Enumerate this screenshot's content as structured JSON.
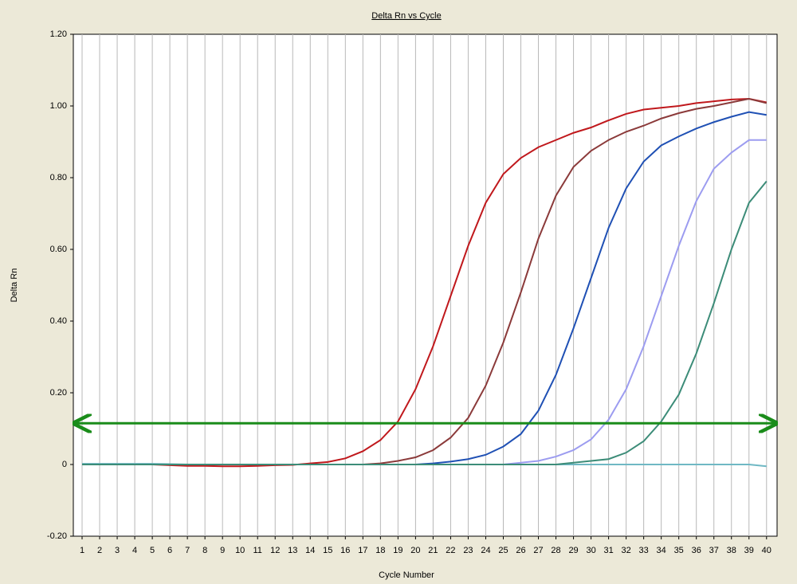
{
  "chart_data": {
    "type": "line",
    "title": "Delta Rn vs Cycle",
    "x_label": "Cycle Number",
    "y_label": "Delta Rn",
    "x": [
      1,
      2,
      3,
      4,
      5,
      6,
      7,
      8,
      9,
      10,
      11,
      12,
      13,
      14,
      15,
      16,
      17,
      18,
      19,
      20,
      21,
      22,
      23,
      24,
      25,
      26,
      27,
      28,
      29,
      30,
      31,
      32,
      33,
      34,
      35,
      36,
      37,
      38,
      39,
      40
    ],
    "xlim": [
      0.5,
      40.6
    ],
    "xticks": [
      1,
      2,
      3,
      4,
      5,
      6,
      7,
      8,
      9,
      10,
      11,
      12,
      13,
      14,
      15,
      16,
      17,
      18,
      19,
      20,
      21,
      22,
      23,
      24,
      25,
      26,
      27,
      28,
      29,
      30,
      31,
      32,
      33,
      34,
      35,
      36,
      37,
      38,
      39,
      40
    ],
    "ylim": [
      -0.2,
      1.2
    ],
    "yticks": [
      {
        "value": -0.2,
        "label": "-0.20"
      },
      0,
      {
        "value": 0.2,
        "label": "0.20"
      },
      {
        "value": 0.4,
        "label": "0.40"
      },
      {
        "value": 0.6,
        "label": "0.60"
      },
      {
        "value": 0.8,
        "label": "0.80"
      },
      {
        "value": 1.0,
        "label": "1.00"
      },
      {
        "value": 1.2,
        "label": "1.20"
      }
    ],
    "grid": true,
    "threshold": 0.115,
    "threshold_color": "#1a8c1a",
    "series": [
      {
        "color": "#6fb8c4",
        "values": [
          0.002,
          0.002,
          0.002,
          0.002,
          0.002,
          0.001,
          0,
          0,
          0,
          0,
          0,
          0,
          0,
          0,
          0,
          0,
          0,
          0,
          0,
          0,
          0,
          0,
          0,
          0,
          0,
          0,
          0,
          0,
          0,
          0,
          0,
          0,
          0,
          0,
          0,
          0,
          0,
          0,
          0,
          -0.005
        ]
      },
      {
        "color": "#c0181c",
        "values": [
          0,
          0,
          0,
          0,
          0,
          -0.002,
          -0.004,
          -0.004,
          -0.005,
          -0.005,
          -0.004,
          -0.002,
          -0.001,
          0.003,
          0.007,
          0.017,
          0.037,
          0.068,
          0.12,
          0.21,
          0.33,
          0.47,
          0.61,
          0.73,
          0.81,
          0.855,
          0.885,
          0.905,
          0.925,
          0.94,
          0.96,
          0.978,
          0.99,
          0.995,
          1.0,
          1.008,
          1.013,
          1.018,
          1.02,
          1.01
        ]
      },
      {
        "color": "#8b3a3a",
        "values": [
          0,
          0,
          0,
          0,
          0,
          0,
          0,
          0,
          0,
          0,
          0,
          0,
          0,
          0,
          0,
          0,
          0,
          0.003,
          0.01,
          0.02,
          0.04,
          0.075,
          0.13,
          0.22,
          0.34,
          0.48,
          0.63,
          0.75,
          0.83,
          0.875,
          0.905,
          0.928,
          0.945,
          0.965,
          0.98,
          0.992,
          1.0,
          1.01,
          1.02,
          1.008
        ]
      },
      {
        "color": "#1f50b4",
        "values": [
          0,
          0,
          0,
          0,
          0,
          0,
          0,
          0,
          0,
          0,
          0,
          0,
          0,
          0,
          0,
          0,
          0,
          0,
          0,
          0,
          0.003,
          0.008,
          0.015,
          0.027,
          0.05,
          0.085,
          0.15,
          0.25,
          0.38,
          0.52,
          0.66,
          0.77,
          0.845,
          0.89,
          0.915,
          0.937,
          0.955,
          0.97,
          0.983,
          0.975
        ]
      },
      {
        "color": "#9c9cf0",
        "values": [
          0,
          0,
          0,
          0,
          0,
          0,
          0,
          0,
          0,
          0,
          0,
          0,
          0,
          0,
          0,
          0,
          0,
          0,
          0,
          0,
          0,
          0,
          0,
          0,
          0,
          0.005,
          0.01,
          0.022,
          0.04,
          0.07,
          0.125,
          0.21,
          0.33,
          0.47,
          0.61,
          0.735,
          0.825,
          0.87,
          0.905,
          0.905
        ]
      },
      {
        "color": "#3c8c78",
        "values": [
          0,
          0,
          0,
          0,
          0,
          0,
          0,
          0,
          0,
          0,
          0,
          0,
          0,
          0,
          0,
          0,
          0,
          0,
          0,
          0,
          0,
          0,
          0,
          0,
          0,
          0,
          0,
          0,
          0.005,
          0.01,
          0.015,
          0.033,
          0.065,
          0.12,
          0.195,
          0.31,
          0.45,
          0.6,
          0.73,
          0.79
        ]
      }
    ]
  }
}
